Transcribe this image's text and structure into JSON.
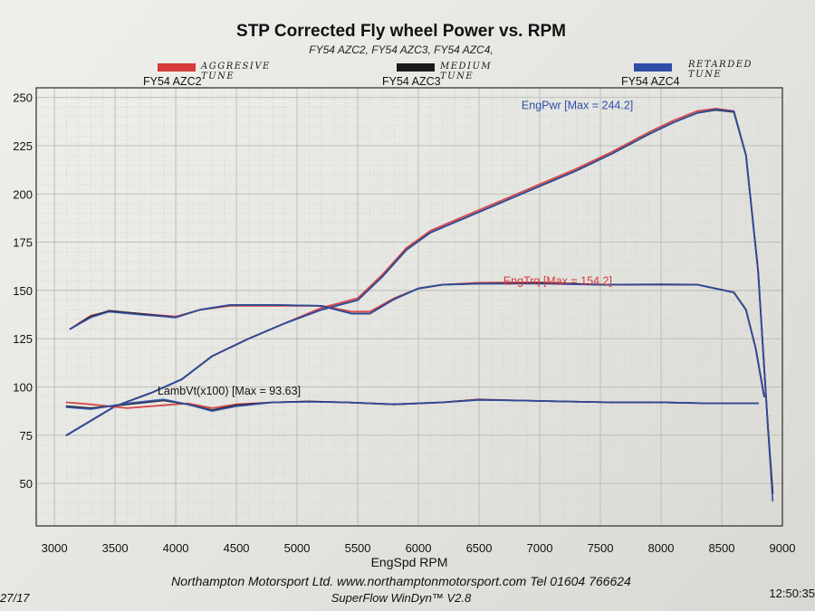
{
  "header": {
    "title": "STP Corrected Fly wheel Power vs. RPM",
    "subtitle": "FY54 AZC2, FY54 AZC3, FY54 AZC4,"
  },
  "legend": [
    {
      "label": "FY54 AZC2",
      "note": "AGGRESIVE TUNE",
      "color": "#d63a3a"
    },
    {
      "label": "FY54 AZC3",
      "note": "MEDIUM TUNE",
      "color": "#1b1b1b"
    },
    {
      "label": "FY54 AZC4",
      "note": "RETARDED TUNE",
      "color": "#2f4fa6"
    }
  ],
  "footer": {
    "line1": "Northampton Motorsport Ltd. www.northamptonmotorsport.com Tel 01604 766624",
    "line2": "SuperFlow WinDyn™ V2.8",
    "left": "27/17",
    "right": "12:50:35"
  },
  "chart_data": {
    "type": "line",
    "title": "STP Corrected Fly wheel Power vs. RPM",
    "xlabel": "EngSpd  RPM",
    "ylabel": "",
    "xlim": [
      2850,
      9000
    ],
    "ylim": [
      28,
      255
    ],
    "xticks": [
      3000,
      3500,
      4000,
      4500,
      5000,
      5500,
      6000,
      6500,
      7000,
      7500,
      8000,
      8500,
      9000
    ],
    "yticks": [
      50,
      75,
      100,
      125,
      150,
      175,
      200,
      225,
      250
    ],
    "grid": true,
    "annotations": [
      {
        "text": "EngPwr [Max = 244.2]",
        "x": 6850,
        "y": 244,
        "color": "#2f4fa6"
      },
      {
        "text": "EngTrq [Max = 154.2]",
        "x": 6700,
        "y": 153,
        "color": "#d63a3a"
      },
      {
        "text": "LambVt(x100) [Max = 93.63]",
        "x": 3850,
        "y": 96,
        "color": "#111111"
      }
    ],
    "series": [
      {
        "name": "FY54 AZC2",
        "quantity": "EngPwr",
        "color": "#d63a3a",
        "x": [
          3100,
          3500,
          3800,
          4050,
          4300,
          4600,
          4900,
          5200,
          5500,
          5700,
          5900,
          6100,
          6400,
          6700,
          7000,
          7300,
          7600,
          7900,
          8100,
          8300,
          8450,
          8600,
          8700,
          8800,
          8880,
          8920
        ],
        "y": [
          75,
          90,
          97,
          104,
          116,
          125,
          133,
          141,
          146,
          158,
          172,
          181,
          189,
          197,
          205,
          213,
          222,
          232,
          238,
          243,
          244.2,
          243,
          220,
          160,
          80,
          45
        ]
      },
      {
        "name": "FY54 AZC3",
        "quantity": "EngPwr",
        "color": "#1b1b1b",
        "x": [
          3100,
          3500,
          3800,
          4050,
          4300,
          4600,
          4900,
          5200,
          5500,
          5700,
          5900,
          6100,
          6400,
          6700,
          7000,
          7300,
          7600,
          7900,
          8100,
          8300,
          8450,
          8600,
          8700,
          8800,
          8880,
          8920
        ],
        "y": [
          75,
          90,
          97,
          104,
          116,
          125,
          133,
          140,
          145,
          157,
          171,
          180,
          188,
          196,
          204,
          212,
          221,
          231,
          237,
          242,
          243.5,
          242.5,
          220,
          160,
          80,
          45
        ]
      },
      {
        "name": "FY54 AZC4",
        "quantity": "EngPwr",
        "color": "#2f4fa6",
        "x": [
          3100,
          3500,
          3800,
          4050,
          4300,
          4600,
          4900,
          5200,
          5500,
          5700,
          5900,
          6100,
          6400,
          6700,
          7000,
          7300,
          7600,
          7900,
          8100,
          8300,
          8450,
          8600,
          8700,
          8800,
          8880,
          8920
        ],
        "y": [
          75,
          90,
          97,
          104,
          116,
          125,
          133,
          140,
          145,
          157,
          171,
          180,
          188,
          196,
          204,
          212,
          221,
          231,
          237,
          242,
          243.8,
          242.8,
          220,
          160,
          80,
          41
        ]
      },
      {
        "name": "FY54 AZC2",
        "quantity": "EngTrq",
        "color": "#d63a3a",
        "x": [
          3130,
          3300,
          3450,
          3700,
          4000,
          4200,
          4450,
          4800,
          5200,
          5450,
          5600,
          5800,
          6000,
          6200,
          6500,
          7000,
          7500,
          8000,
          8300,
          8600,
          8700,
          8780,
          8850
        ],
        "y": [
          130,
          137,
          139,
          138,
          136.5,
          140,
          142,
          142,
          142,
          139,
          139,
          146,
          151,
          153,
          154,
          154.2,
          153,
          153,
          153,
          149,
          140,
          120,
          95
        ]
      },
      {
        "name": "FY54 AZC3",
        "quantity": "EngTrq",
        "color": "#1b1b1b",
        "x": [
          3130,
          3300,
          3450,
          3700,
          4000,
          4200,
          4450,
          4800,
          5200,
          5450,
          5600,
          5800,
          6000,
          6200,
          6500,
          7000,
          7500,
          8000,
          8300,
          8600,
          8700,
          8780,
          8850
        ],
        "y": [
          130,
          136.5,
          139.5,
          138,
          136,
          140,
          142.5,
          142.5,
          142,
          138,
          138,
          145.5,
          151,
          153,
          153.5,
          153.8,
          153,
          153.2,
          153,
          149,
          140,
          120,
          95
        ]
      },
      {
        "name": "FY54 AZC4",
        "quantity": "EngTrq",
        "color": "#2f4fa6",
        "x": [
          3130,
          3300,
          3450,
          3700,
          4000,
          4200,
          4450,
          4800,
          5200,
          5450,
          5600,
          5800,
          6000,
          6200,
          6500,
          7000,
          7500,
          8000,
          8300,
          8600,
          8700,
          8780,
          8850
        ],
        "y": [
          130,
          136,
          139,
          137.5,
          136,
          140,
          142.5,
          142.5,
          142,
          138,
          138,
          145.5,
          151,
          153,
          153.5,
          153.5,
          153,
          153,
          153,
          149,
          140,
          120,
          95
        ]
      },
      {
        "name": "FY54 AZC2",
        "quantity": "LambVt(x100)",
        "color": "#d63a3a",
        "x": [
          3100,
          3300,
          3600,
          3900,
          4100,
          4300,
          4500,
          4800,
          5100,
          5400,
          5800,
          6200,
          6500,
          6800,
          7200,
          7600,
          8000,
          8400,
          8800
        ],
        "y": [
          92,
          91,
          89,
          90.5,
          91.5,
          89,
          91,
          92,
          92.5,
          92,
          91,
          92,
          93.63,
          93,
          92.5,
          92,
          92,
          91.5,
          91.5
        ]
      },
      {
        "name": "FY54 AZC3",
        "quantity": "LambVt(x100)",
        "color": "#1b1b1b",
        "x": [
          3100,
          3300,
          3600,
          3900,
          4100,
          4300,
          4500,
          4800,
          5100,
          5400,
          5800,
          6200,
          6500,
          6800,
          7200,
          7600,
          8000,
          8400,
          8800
        ],
        "y": [
          90,
          89,
          91,
          93,
          91,
          88,
          90.5,
          92,
          92.5,
          92,
          91,
          92,
          93.4,
          93,
          92.5,
          92,
          92,
          91.5,
          91.5
        ]
      },
      {
        "name": "FY54 AZC4",
        "quantity": "LambVt(x100)",
        "color": "#2f4fa6",
        "x": [
          3100,
          3300,
          3600,
          3900,
          4100,
          4300,
          4500,
          4800,
          5100,
          5400,
          5800,
          6200,
          6500,
          6800,
          7200,
          7600,
          8000,
          8400,
          8800
        ],
        "y": [
          89.5,
          88.5,
          91.5,
          93.5,
          91,
          87.5,
          90,
          92,
          92.3,
          92,
          91,
          92,
          93.3,
          93,
          92.5,
          92,
          92,
          91.5,
          91.5
        ]
      }
    ]
  }
}
